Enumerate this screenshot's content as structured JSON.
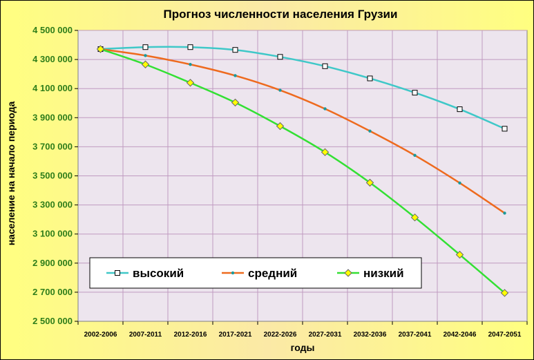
{
  "chart_data": {
    "type": "line",
    "title": "Прогноз численности населения Грузии",
    "xlabel": "годы",
    "ylabel": "население на начало периода",
    "categories": [
      "2002-2006",
      "2007-2011",
      "2012-2016",
      "2017-2021",
      "2022-2026",
      "2027-2031",
      "2032-2036",
      "2037-2041",
      "2042-2046",
      "2047-2051"
    ],
    "ylim": [
      2500000,
      4500000
    ],
    "yticks": [
      2500000,
      2700000,
      2900000,
      3100000,
      3300000,
      3500000,
      3700000,
      3900000,
      4100000,
      4300000,
      4500000
    ],
    "ytick_labels": [
      "2 500 000",
      "2 700 000",
      "2 900 000",
      "3 100 000",
      "3 300 000",
      "3 500 000",
      "3 700 000",
      "3 900 000",
      "4 100 000",
      "4 300 000",
      "4 500 000"
    ],
    "grid": true,
    "legend_position": "bottom-left inside",
    "series": [
      {
        "name": "высокий",
        "color": "#3fc8c8",
        "marker": "square",
        "values": [
          4371500,
          4385000,
          4385000,
          4366000,
          4318000,
          4254000,
          4170000,
          4072000,
          3958000,
          3824000
        ]
      },
      {
        "name": "средний",
        "color": "#ee6a1e",
        "marker": "dot",
        "values": [
          4371500,
          4327000,
          4266000,
          4189000,
          4089000,
          3961000,
          3808000,
          3641000,
          3451000,
          3244000
        ]
      },
      {
        "name": "низкий",
        "color": "#33e033",
        "marker": "diamond",
        "values": [
          4371500,
          4266000,
          4140000,
          4004000,
          3842000,
          3663000,
          3453000,
          3214000,
          2958000,
          2695000
        ]
      }
    ]
  },
  "colors": {
    "plot_background": "#ede5ee",
    "gridline": "#c09ac0",
    "tick_label": "#2e7d1a"
  }
}
